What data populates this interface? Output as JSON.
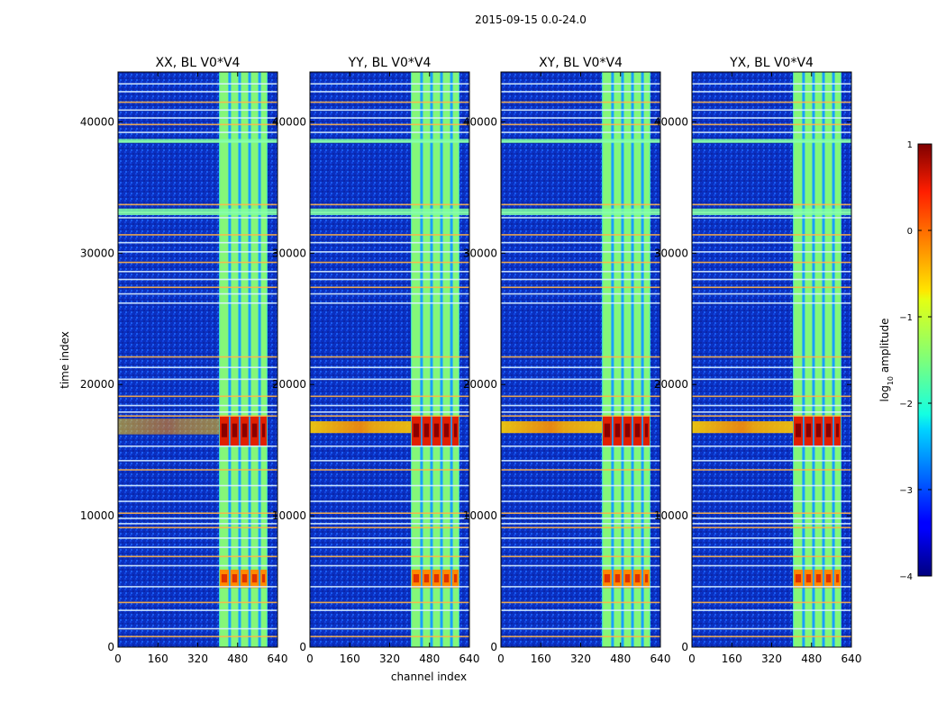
{
  "suptitle": "2015-09-15 0.0-24.0",
  "chart_data": {
    "type": "heatmap",
    "panels": [
      {
        "title": "XX, BL V0*V4",
        "hot_band_time": [
          16200,
          17400
        ],
        "hot_band_channels": [
          0,
          640
        ]
      },
      {
        "title": "YY, BL V0*V4",
        "hot_band_time": [
          16300,
          17200
        ],
        "hot_band_channels": [
          0,
          640
        ]
      },
      {
        "title": "XY, BL V0*V4",
        "hot_band_time": [
          16300,
          17200
        ],
        "hot_band_channels": [
          0,
          640
        ]
      },
      {
        "title": "YX, BL V0*V4",
        "hot_band_time": [
          16300,
          17200
        ],
        "hot_band_channels": [
          0,
          640
        ]
      }
    ],
    "xlabel": "channel index",
    "ylabel": "time index",
    "xlim": [
      0,
      640
    ],
    "ylim": [
      0,
      43800
    ],
    "xticks": [
      0,
      160,
      320,
      480,
      640
    ],
    "yticks": [
      0,
      10000,
      20000,
      30000,
      40000
    ],
    "colorbar": {
      "label": "log10 amplitude",
      "label_base": "log",
      "label_sub": "10",
      "label_rest": " amplitude",
      "ticks": [
        {
          "value": 1,
          "text": "1"
        },
        {
          "value": 0,
          "text": "0"
        },
        {
          "value": -1,
          "text": "−1"
        },
        {
          "value": -2,
          "text": "−2"
        },
        {
          "value": -3,
          "text": "−3"
        },
        {
          "value": -4,
          "text": "−4"
        }
      ],
      "range": [
        -4,
        1
      ],
      "colormap": "jet"
    },
    "features": {
      "bright_channel_range": [
        405,
        600
      ],
      "bright_column_gaps": [
        448,
        488,
        528,
        568
      ],
      "strong_blocks_time": [
        [
          4500,
          5900
        ],
        [
          15300,
          17600
        ]
      ],
      "flagged_time_rows": [
        800,
        1400,
        2800,
        3400,
        4600,
        6200,
        6900,
        7600,
        8300,
        9100,
        9400,
        9800,
        10200,
        11100,
        12300,
        13500,
        14200,
        15300,
        17600,
        17900,
        18400,
        19100,
        20400,
        21300,
        22100,
        26200,
        26900,
        27400,
        28000,
        28600,
        29300,
        30100,
        30800,
        31400,
        32700,
        33100,
        33700,
        38500,
        39200,
        39800,
        40300,
        40900,
        41500,
        42300,
        42900
      ]
    }
  },
  "colors": {
    "background": "#00208f",
    "accent_text": "#000000"
  }
}
